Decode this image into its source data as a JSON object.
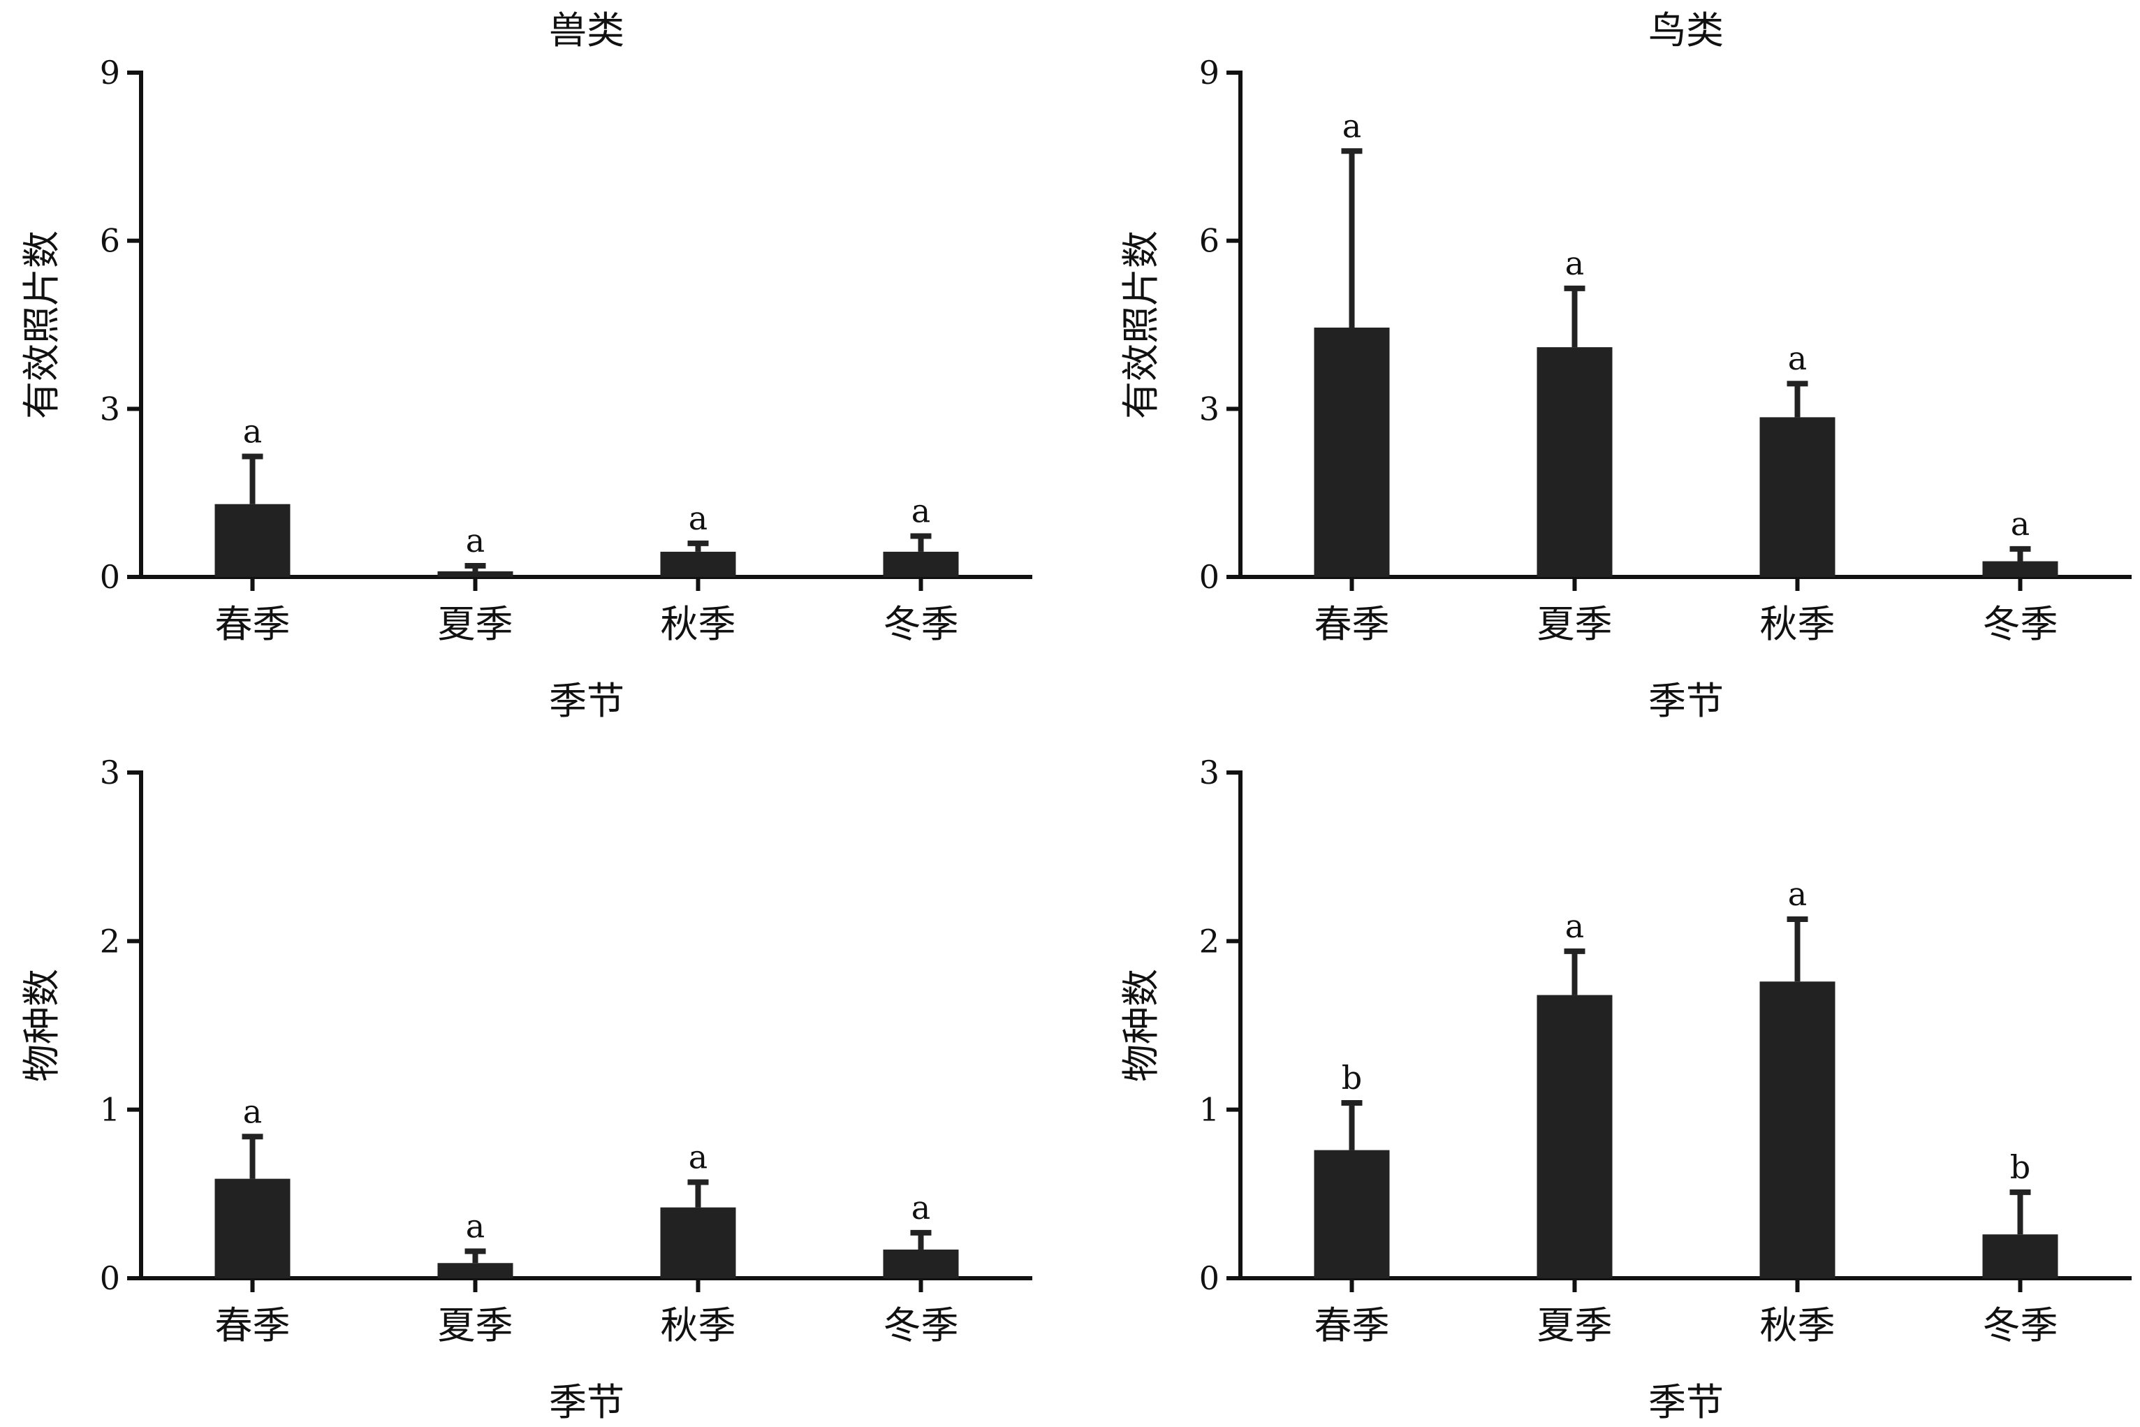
{
  "colors": {
    "bar": "#222222",
    "axis": "#111111",
    "background": "#ffffff"
  },
  "chart_data": [
    {
      "type": "bar",
      "title": "兽类",
      "xlabel": "季节",
      "ylabel": "有效照片数",
      "categories": [
        "春季",
        "夏季",
        "秋季",
        "冬季"
      ],
      "values": [
        1.3,
        0.1,
        0.45,
        0.45
      ],
      "errors": [
        0.85,
        0.1,
        0.15,
        0.28
      ],
      "significance": [
        "a",
        "a",
        "a",
        "a"
      ],
      "ylim": [
        0,
        9
      ],
      "yticks": [
        0,
        3,
        6,
        9
      ],
      "grid": false
    },
    {
      "type": "bar",
      "title": "鸟类",
      "xlabel": "季节",
      "ylabel": "有效照片数",
      "categories": [
        "春季",
        "夏季",
        "秋季",
        "冬季"
      ],
      "values": [
        4.45,
        4.1,
        2.85,
        0.28
      ],
      "errors": [
        3.15,
        1.05,
        0.6,
        0.22
      ],
      "significance": [
        "a",
        "a",
        "a",
        "a"
      ],
      "ylim": [
        0,
        9
      ],
      "yticks": [
        0,
        3,
        6,
        9
      ],
      "grid": false
    },
    {
      "type": "bar",
      "title": "",
      "xlabel": "季节",
      "ylabel": "物种数",
      "categories": [
        "春季",
        "夏季",
        "秋季",
        "冬季"
      ],
      "values": [
        0.59,
        0.09,
        0.42,
        0.17
      ],
      "errors": [
        0.25,
        0.07,
        0.15,
        0.1
      ],
      "significance": [
        "a",
        "a",
        "a",
        "a"
      ],
      "ylim": [
        0,
        3
      ],
      "yticks": [
        0,
        1,
        2,
        3
      ],
      "grid": false
    },
    {
      "type": "bar",
      "title": "",
      "xlabel": "季节",
      "ylabel": "物种数",
      "categories": [
        "春季",
        "夏季",
        "秋季",
        "冬季"
      ],
      "values": [
        0.76,
        1.68,
        1.76,
        0.26
      ],
      "errors": [
        0.28,
        0.26,
        0.37,
        0.25
      ],
      "significance": [
        "b",
        "a",
        "a",
        "b"
      ],
      "ylim": [
        0,
        3
      ],
      "yticks": [
        0,
        1,
        2,
        3
      ],
      "grid": false
    }
  ]
}
